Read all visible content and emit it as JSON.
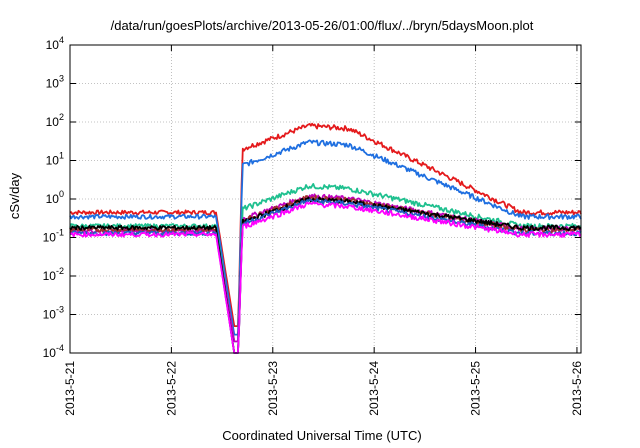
{
  "chart_data": {
    "type": "line",
    "title": "/data/run/goesPlots/archive/2013-05-26/01:00/flux/../bryn/5daysMoon.plot",
    "xlabel": "Coordinated Universal Time (UTC)",
    "ylabel": "cSv/day",
    "xlim": [
      0,
      5.04
    ],
    "ylim_log10": [
      -4,
      4
    ],
    "yscale": "log",
    "grid": true,
    "x_ticks": [
      {
        "x": 0,
        "label": "2013-5-21"
      },
      {
        "x": 1,
        "label": "2013-5-22"
      },
      {
        "x": 2,
        "label": "2013-5-23"
      },
      {
        "x": 3,
        "label": "2013-5-24"
      },
      {
        "x": 4,
        "label": "2013-5-25"
      },
      {
        "x": 5,
        "label": "2013-5-26"
      }
    ],
    "y_ticks": [
      {
        "exp": -4,
        "base": "10",
        "sup": "-4"
      },
      {
        "exp": -3,
        "base": "10",
        "sup": "-3"
      },
      {
        "exp": -2,
        "base": "10",
        "sup": "-2"
      },
      {
        "exp": -1,
        "base": "10",
        "sup": "-1"
      },
      {
        "exp": 0,
        "base": "10",
        "sup": "0"
      },
      {
        "exp": 1,
        "base": "10",
        "sup": "1"
      },
      {
        "exp": 2,
        "base": "10",
        "sup": "2"
      },
      {
        "exp": 3,
        "base": "10",
        "sup": "3"
      },
      {
        "exp": 4,
        "base": "10",
        "sup": "4"
      }
    ],
    "series": [
      {
        "color": "#e41a1c",
        "baseline": 0.45,
        "peak": 80,
        "final": 0.45,
        "dropMin": 0.0005
      },
      {
        "color": "#1f6fe0",
        "baseline": 0.35,
        "peak": 30,
        "final": 0.35,
        "dropMin": 0.0003
      },
      {
        "color": "#1fc08f",
        "baseline": 0.2,
        "peak": 2.2,
        "final": 0.2,
        "dropMin": 0.0002
      },
      {
        "color": "#c000c0",
        "baseline": 0.15,
        "peak": 1.2,
        "final": 0.17,
        "dropMin": 0.0002
      },
      {
        "color": "#a03030",
        "baseline": 0.16,
        "peak": 1.1,
        "final": 0.16,
        "dropMin": 0.0001
      },
      {
        "color": "#000000",
        "baseline": 0.18,
        "peak": 1.0,
        "final": 0.18,
        "dropMin": 0.0001
      },
      {
        "color": "#2060c0",
        "baseline": 0.13,
        "peak": 0.9,
        "final": 0.13,
        "dropMin": 0.0001
      },
      {
        "color": "#ff00ff",
        "baseline": 0.12,
        "peak": 0.75,
        "final": 0.12,
        "dropMin": 0.0001
      }
    ]
  }
}
